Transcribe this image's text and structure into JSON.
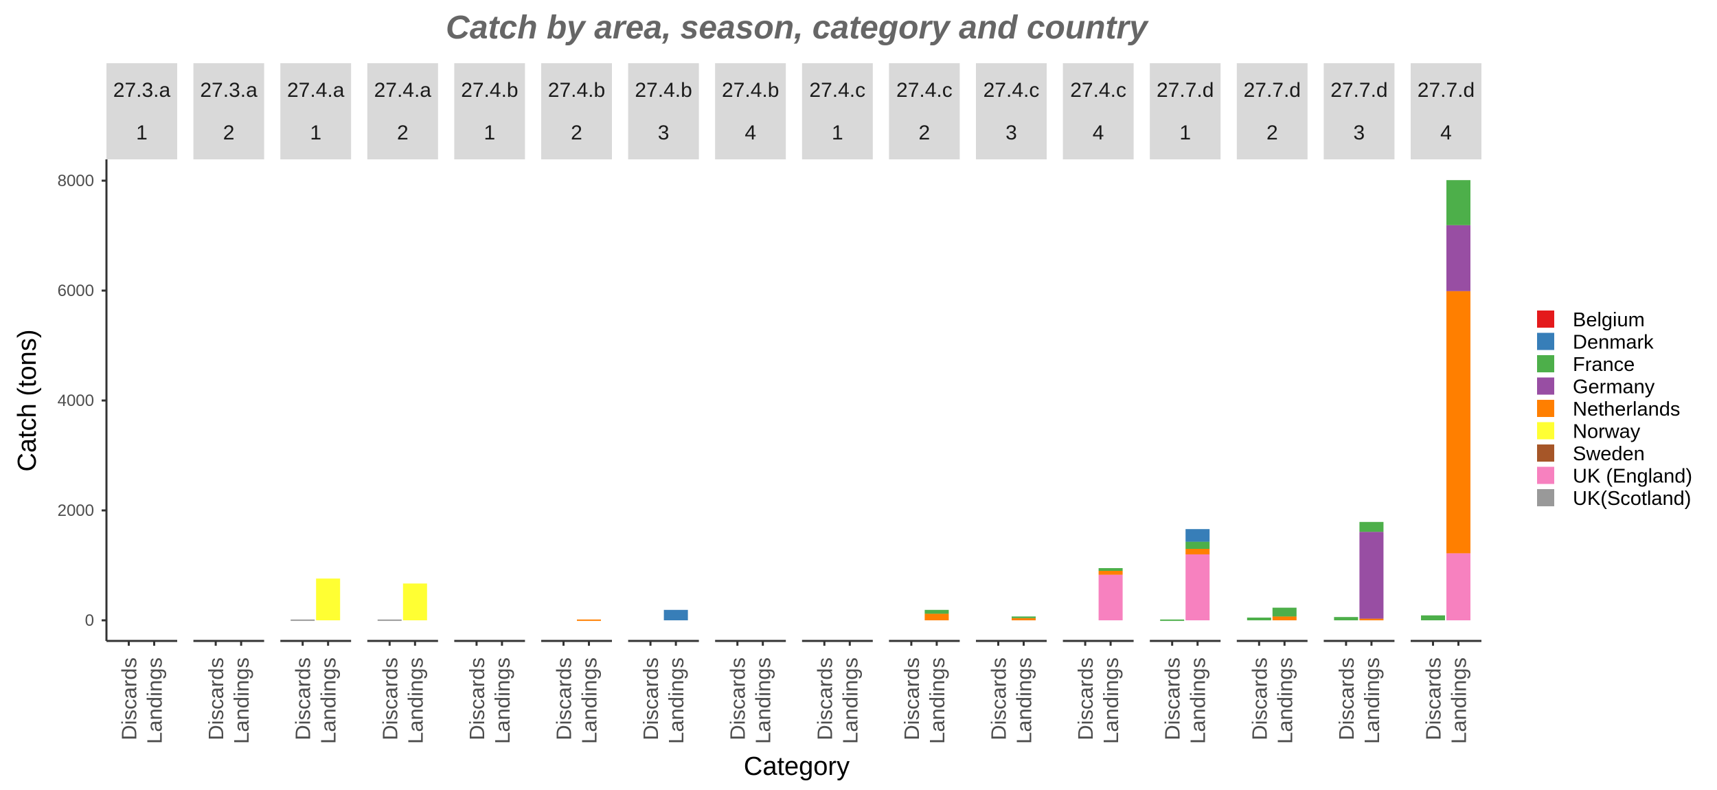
{
  "chart_data": {
    "type": "bar",
    "stacked": true,
    "title": "Catch by area, season, category and country",
    "xlabel": "Category",
    "ylabel": "Catch (tons)",
    "ylim": [
      0,
      8000
    ],
    "yticks": [
      0,
      2000,
      4000,
      6000,
      8000
    ],
    "grid": false,
    "legend_position": "right",
    "categories": [
      "Discards",
      "Landings"
    ],
    "countries": [
      "Belgium",
      "Denmark",
      "France",
      "Germany",
      "Netherlands",
      "Norway",
      "Sweden",
      "UK (England)",
      "UK(Scotland)"
    ],
    "colors": {
      "Belgium": "#e41a1c",
      "Denmark": "#377eb8",
      "France": "#4daf4a",
      "Germany": "#984ea3",
      "Netherlands": "#ff7f00",
      "Norway": "#ffff33",
      "Sweden": "#a65628",
      "UK (England)": "#f781bf",
      "UK(Scotland)": "#999999"
    },
    "panels": [
      {
        "area": "27.3.a",
        "season": "1",
        "bars": {
          "Discards": {},
          "Landings": {}
        }
      },
      {
        "area": "27.3.a",
        "season": "2",
        "bars": {
          "Discards": {},
          "Landings": {}
        }
      },
      {
        "area": "27.4.a",
        "season": "1",
        "bars": {
          "Discards": {
            "UK(Scotland)": 15
          },
          "Landings": {
            "Norway": 760
          }
        }
      },
      {
        "area": "27.4.a",
        "season": "2",
        "bars": {
          "Discards": {
            "UK(Scotland)": 15
          },
          "Landings": {
            "Norway": 670
          }
        }
      },
      {
        "area": "27.4.b",
        "season": "1",
        "bars": {
          "Discards": {},
          "Landings": {}
        }
      },
      {
        "area": "27.4.b",
        "season": "2",
        "bars": {
          "Discards": {},
          "Landings": {
            "Netherlands": 15
          }
        }
      },
      {
        "area": "27.4.b",
        "season": "3",
        "bars": {
          "Discards": {},
          "Landings": {
            "Denmark": 190
          }
        }
      },
      {
        "area": "27.4.b",
        "season": "4",
        "bars": {
          "Discards": {},
          "Landings": {}
        }
      },
      {
        "area": "27.4.c",
        "season": "1",
        "bars": {
          "Discards": {},
          "Landings": {}
        }
      },
      {
        "area": "27.4.c",
        "season": "2",
        "bars": {
          "Discards": {},
          "Landings": {
            "Netherlands": 120,
            "France": 70
          }
        }
      },
      {
        "area": "27.4.c",
        "season": "3",
        "bars": {
          "Discards": {},
          "Landings": {
            "Netherlands": 40,
            "France": 30
          }
        }
      },
      {
        "area": "27.4.c",
        "season": "4",
        "bars": {
          "Discards": {},
          "Landings": {
            "UK (England)": 830,
            "Netherlands": 70,
            "France": 50
          }
        }
      },
      {
        "area": "27.7.d",
        "season": "1",
        "bars": {
          "Discards": {
            "France": 15
          },
          "Landings": {
            "UK (England)": 1200,
            "Netherlands": 100,
            "France": 130,
            "Denmark": 230
          }
        }
      },
      {
        "area": "27.7.d",
        "season": "2",
        "bars": {
          "Discards": {
            "France": 50
          },
          "Landings": {
            "Netherlands": 70,
            "France": 160
          }
        }
      },
      {
        "area": "27.7.d",
        "season": "3",
        "bars": {
          "Discards": {
            "France": 60
          },
          "Landings": {
            "Netherlands": 30,
            "Germany": 1580,
            "France": 180
          }
        }
      },
      {
        "area": "27.7.d",
        "season": "4",
        "bars": {
          "Discards": {
            "France": 90
          },
          "Landings": {
            "UK (England)": 1220,
            "Netherlands": 4770,
            "Germany": 1200,
            "France": 820
          }
        }
      }
    ]
  }
}
